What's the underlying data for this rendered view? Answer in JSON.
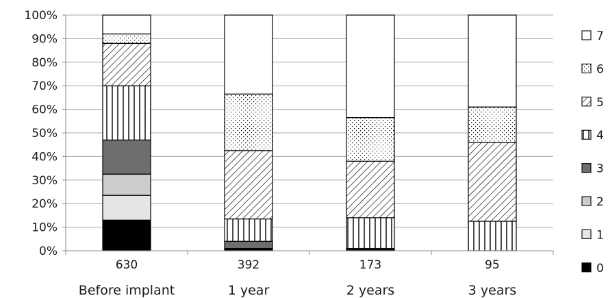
{
  "chart_data": {
    "type": "bar",
    "stacked": true,
    "percent_scale": true,
    "categories": [
      {
        "count": "630",
        "label": "Before implant"
      },
      {
        "count": "392",
        "label": "1 year"
      },
      {
        "count": "173",
        "label": "2 years"
      },
      {
        "count": "95",
        "label": "3 years"
      }
    ],
    "y_ticks": [
      "0%",
      "10%",
      "20%",
      "30%",
      "40%",
      "50%",
      "60%",
      "70%",
      "80%",
      "90%",
      "100%"
    ],
    "ylim": [
      0,
      100
    ],
    "grid": true,
    "legend_position": "right",
    "series": [
      {
        "name": "0",
        "fill": "solid-black",
        "values": [
          13,
          1,
          0.5,
          0
        ]
      },
      {
        "name": "1",
        "fill": "light-gray",
        "values": [
          10.5,
          0,
          0,
          0
        ]
      },
      {
        "name": "2",
        "fill": "mid-gray",
        "values": [
          9,
          0,
          0,
          0
        ]
      },
      {
        "name": "3",
        "fill": "dark-gray",
        "values": [
          14.5,
          3,
          0.5,
          0
        ]
      },
      {
        "name": "4",
        "fill": "vertical-lines",
        "values": [
          23,
          9.5,
          13,
          12.5
        ]
      },
      {
        "name": "5",
        "fill": "diagonal-hatch",
        "values": [
          18,
          29,
          24,
          33.5
        ]
      },
      {
        "name": "6",
        "fill": "dots",
        "values": [
          4,
          24,
          18.5,
          15
        ]
      },
      {
        "name": "7",
        "fill": "white",
        "values": [
          8,
          33.5,
          43.5,
          39
        ]
      }
    ]
  }
}
